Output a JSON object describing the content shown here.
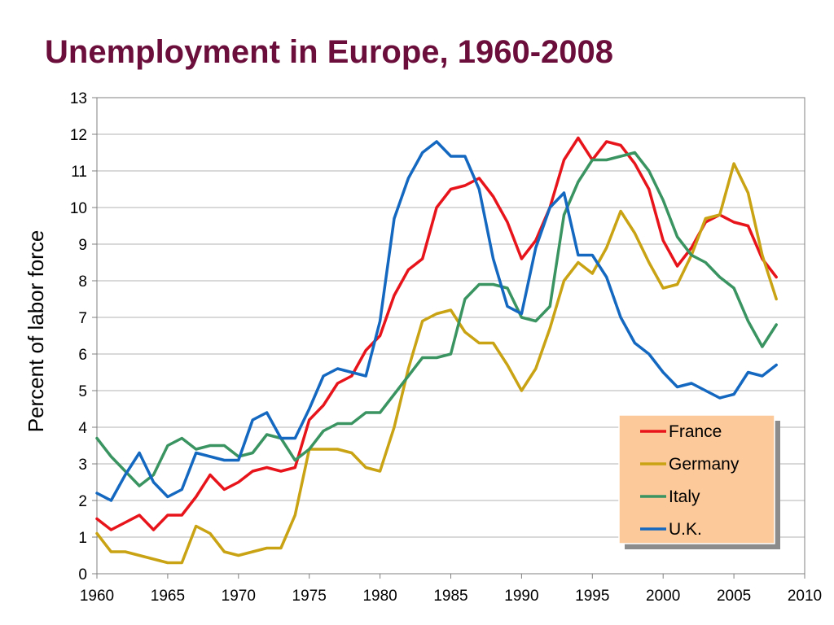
{
  "chart_data": {
    "type": "line",
    "title": "Unemployment in Europe, 1960-2008",
    "xlabel": "",
    "ylabel": "Percent of labor force",
    "xlim": [
      1960,
      2010
    ],
    "ylim": [
      0,
      13
    ],
    "xticks": [
      1960,
      1965,
      1970,
      1975,
      1980,
      1985,
      1990,
      1995,
      2000,
      2005,
      2010
    ],
    "yticks": [
      0,
      1,
      2,
      3,
      4,
      5,
      6,
      7,
      8,
      9,
      10,
      11,
      12,
      13
    ],
    "grid": true,
    "legend_position": "bottom-right",
    "x": [
      1960,
      1961,
      1962,
      1963,
      1964,
      1965,
      1966,
      1967,
      1968,
      1969,
      1970,
      1971,
      1972,
      1973,
      1974,
      1975,
      1976,
      1977,
      1978,
      1979,
      1980,
      1981,
      1982,
      1983,
      1984,
      1985,
      1986,
      1987,
      1988,
      1989,
      1990,
      1991,
      1992,
      1993,
      1994,
      1995,
      1996,
      1997,
      1998,
      1999,
      2000,
      2001,
      2002,
      2003,
      2004,
      2005,
      2006,
      2007,
      2008
    ],
    "series": [
      {
        "name": "France",
        "color": "#e8141b",
        "values": [
          1.5,
          1.2,
          1.4,
          1.6,
          1.2,
          1.6,
          1.6,
          2.1,
          2.7,
          2.3,
          2.5,
          2.8,
          2.9,
          2.8,
          2.9,
          4.2,
          4.6,
          5.2,
          5.4,
          6.1,
          6.5,
          7.6,
          8.3,
          8.6,
          10.0,
          10.5,
          10.6,
          10.8,
          10.3,
          9.6,
          8.6,
          9.1,
          10.0,
          11.3,
          11.9,
          11.3,
          11.8,
          11.7,
          11.2,
          10.5,
          9.1,
          8.4,
          8.9,
          9.6,
          9.8,
          9.6,
          9.5,
          8.6,
          8.1
        ]
      },
      {
        "name": "Germany",
        "color": "#c9a313",
        "values": [
          1.1,
          0.6,
          0.6,
          0.5,
          0.4,
          0.3,
          0.3,
          1.3,
          1.1,
          0.6,
          0.5,
          0.6,
          0.7,
          0.7,
          1.6,
          3.4,
          3.4,
          3.4,
          3.3,
          2.9,
          2.8,
          4.0,
          5.6,
          6.9,
          7.1,
          7.2,
          6.6,
          6.3,
          6.3,
          5.7,
          5.0,
          5.6,
          6.7,
          8.0,
          8.5,
          8.2,
          8.9,
          9.9,
          9.3,
          8.5,
          7.8,
          7.9,
          8.7,
          9.7,
          9.8,
          11.2,
          10.4,
          8.7,
          7.5
        ]
      },
      {
        "name": "Italy",
        "color": "#3a9461",
        "values": [
          3.7,
          3.2,
          2.8,
          2.4,
          2.7,
          3.5,
          3.7,
          3.4,
          3.5,
          3.5,
          3.2,
          3.3,
          3.8,
          3.7,
          3.1,
          3.4,
          3.9,
          4.1,
          4.1,
          4.4,
          4.4,
          4.9,
          5.4,
          5.9,
          5.9,
          6.0,
          7.5,
          7.9,
          7.9,
          7.8,
          7.0,
          6.9,
          7.3,
          9.8,
          10.7,
          11.3,
          11.3,
          11.4,
          11.5,
          11.0,
          10.2,
          9.2,
          8.7,
          8.5,
          8.1,
          7.8,
          6.9,
          6.2,
          6.8
        ]
      },
      {
        "name": "U.K.",
        "color": "#1468c0",
        "values": [
          2.2,
          2.0,
          2.7,
          3.3,
          2.5,
          2.1,
          2.3,
          3.3,
          3.2,
          3.1,
          3.1,
          4.2,
          4.4,
          3.7,
          3.7,
          4.5,
          5.4,
          5.6,
          5.5,
          5.4,
          6.9,
          9.7,
          10.8,
          11.5,
          11.8,
          11.4,
          11.4,
          10.5,
          8.6,
          7.3,
          7.1,
          8.9,
          10.0,
          10.4,
          8.7,
          8.7,
          8.1,
          7.0,
          6.3,
          6.0,
          5.5,
          5.1,
          5.2,
          5.0,
          4.8,
          4.9,
          5.5,
          5.4,
          5.7
        ]
      }
    ]
  },
  "style": {
    "title_color": "#6b0e3c",
    "gridline_color": "#b3b3b3",
    "axis_color": "#808080",
    "legend_background": "#fcc99a",
    "legend_border": "#ffffff",
    "legend_shadow": "#8c8c8c"
  }
}
